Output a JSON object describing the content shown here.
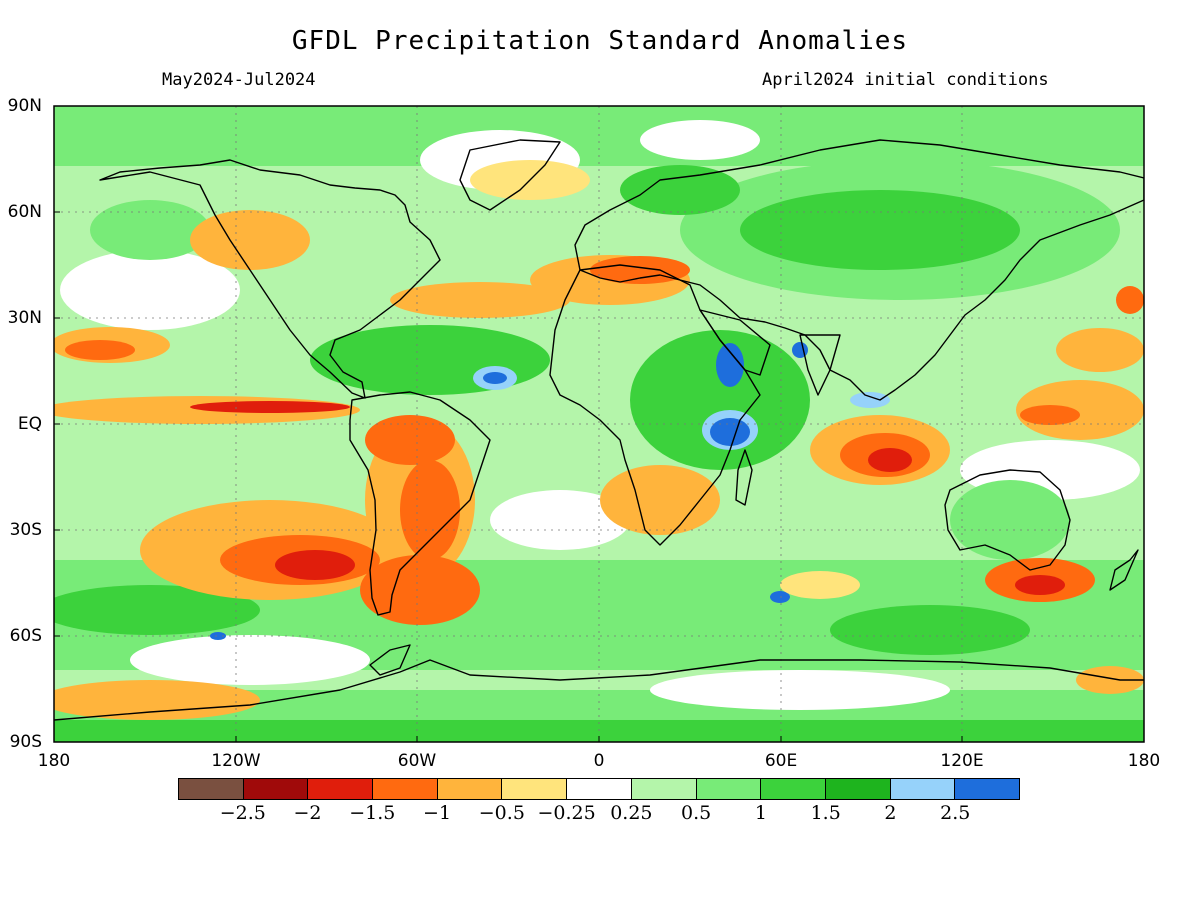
{
  "title": "GFDL Precipitation Standard Anomalies",
  "period": "May2024-Jul2024",
  "init": "April2024 initial conditions",
  "lat_labels": [
    "90N",
    "60N",
    "30N",
    "EQ",
    "30S",
    "60S",
    "90S"
  ],
  "lon_labels": [
    "180",
    "120W",
    "60W",
    "0",
    "60E",
    "120E",
    "180"
  ],
  "legend": {
    "colors": [
      "#7a5040",
      "#a00a0a",
      "#e01e0c",
      "#ff6a10",
      "#ffb43c",
      "#ffe47c",
      "#ffffff",
      "#b4f5aa",
      "#78eb78",
      "#3cd23c",
      "#1eb41e",
      "#96d2fa",
      "#1e6edc"
    ],
    "labels": [
      "-2.5",
      "-2",
      "-1.5",
      "-1",
      "-0.5",
      "-0.25",
      "0.25",
      "0.5",
      "1",
      "1.5",
      "2",
      "2.5"
    ]
  },
  "colors": {
    "ocean_base": "#ffffff",
    "light_green": "#b4f5aa",
    "green": "#78eb78",
    "mid_green": "#3cd23c",
    "dark_green": "#1eb41e",
    "light_blue": "#96d2fa",
    "blue": "#1e6edc",
    "yellow": "#ffe47c",
    "light_orange": "#ffb43c",
    "orange": "#ff6a10",
    "red": "#e01e0c",
    "dark_red": "#a00a0a",
    "coast": "#000000"
  }
}
